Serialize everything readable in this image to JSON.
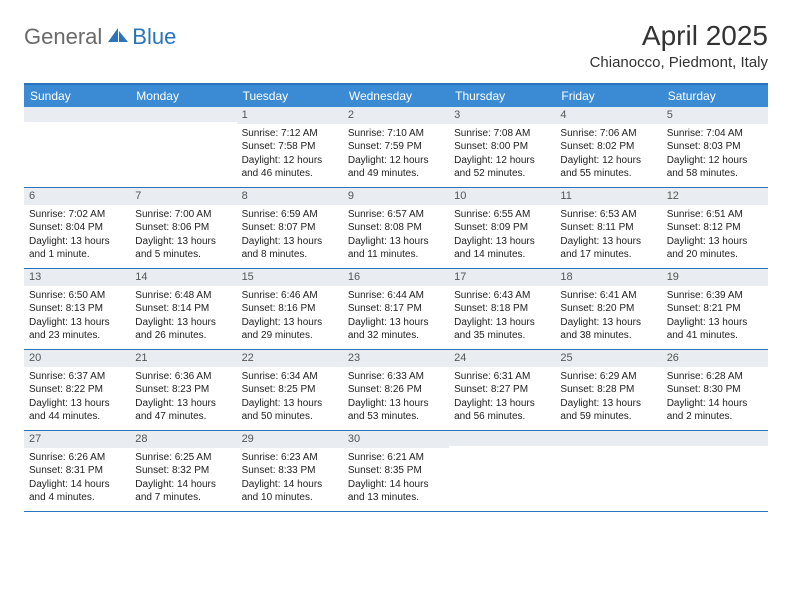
{
  "logo": {
    "part1": "General",
    "part2": "Blue"
  },
  "title": "April 2025",
  "location": "Chianocco, Piedmont, Italy",
  "colors": {
    "header_bg": "#3b8bd4",
    "border": "#2a74bd",
    "daynum_bg": "#e9edf1",
    "logo_gray": "#6a6a6a",
    "logo_blue": "#2a74bd"
  },
  "day_headers": [
    "Sunday",
    "Monday",
    "Tuesday",
    "Wednesday",
    "Thursday",
    "Friday",
    "Saturday"
  ],
  "weeks": [
    [
      {
        "num": "",
        "lines": []
      },
      {
        "num": "",
        "lines": []
      },
      {
        "num": "1",
        "lines": [
          "Sunrise: 7:12 AM",
          "Sunset: 7:58 PM",
          "Daylight: 12 hours",
          "and 46 minutes."
        ]
      },
      {
        "num": "2",
        "lines": [
          "Sunrise: 7:10 AM",
          "Sunset: 7:59 PM",
          "Daylight: 12 hours",
          "and 49 minutes."
        ]
      },
      {
        "num": "3",
        "lines": [
          "Sunrise: 7:08 AM",
          "Sunset: 8:00 PM",
          "Daylight: 12 hours",
          "and 52 minutes."
        ]
      },
      {
        "num": "4",
        "lines": [
          "Sunrise: 7:06 AM",
          "Sunset: 8:02 PM",
          "Daylight: 12 hours",
          "and 55 minutes."
        ]
      },
      {
        "num": "5",
        "lines": [
          "Sunrise: 7:04 AM",
          "Sunset: 8:03 PM",
          "Daylight: 12 hours",
          "and 58 minutes."
        ]
      }
    ],
    [
      {
        "num": "6",
        "lines": [
          "Sunrise: 7:02 AM",
          "Sunset: 8:04 PM",
          "Daylight: 13 hours",
          "and 1 minute."
        ]
      },
      {
        "num": "7",
        "lines": [
          "Sunrise: 7:00 AM",
          "Sunset: 8:06 PM",
          "Daylight: 13 hours",
          "and 5 minutes."
        ]
      },
      {
        "num": "8",
        "lines": [
          "Sunrise: 6:59 AM",
          "Sunset: 8:07 PM",
          "Daylight: 13 hours",
          "and 8 minutes."
        ]
      },
      {
        "num": "9",
        "lines": [
          "Sunrise: 6:57 AM",
          "Sunset: 8:08 PM",
          "Daylight: 13 hours",
          "and 11 minutes."
        ]
      },
      {
        "num": "10",
        "lines": [
          "Sunrise: 6:55 AM",
          "Sunset: 8:09 PM",
          "Daylight: 13 hours",
          "and 14 minutes."
        ]
      },
      {
        "num": "11",
        "lines": [
          "Sunrise: 6:53 AM",
          "Sunset: 8:11 PM",
          "Daylight: 13 hours",
          "and 17 minutes."
        ]
      },
      {
        "num": "12",
        "lines": [
          "Sunrise: 6:51 AM",
          "Sunset: 8:12 PM",
          "Daylight: 13 hours",
          "and 20 minutes."
        ]
      }
    ],
    [
      {
        "num": "13",
        "lines": [
          "Sunrise: 6:50 AM",
          "Sunset: 8:13 PM",
          "Daylight: 13 hours",
          "and 23 minutes."
        ]
      },
      {
        "num": "14",
        "lines": [
          "Sunrise: 6:48 AM",
          "Sunset: 8:14 PM",
          "Daylight: 13 hours",
          "and 26 minutes."
        ]
      },
      {
        "num": "15",
        "lines": [
          "Sunrise: 6:46 AM",
          "Sunset: 8:16 PM",
          "Daylight: 13 hours",
          "and 29 minutes."
        ]
      },
      {
        "num": "16",
        "lines": [
          "Sunrise: 6:44 AM",
          "Sunset: 8:17 PM",
          "Daylight: 13 hours",
          "and 32 minutes."
        ]
      },
      {
        "num": "17",
        "lines": [
          "Sunrise: 6:43 AM",
          "Sunset: 8:18 PM",
          "Daylight: 13 hours",
          "and 35 minutes."
        ]
      },
      {
        "num": "18",
        "lines": [
          "Sunrise: 6:41 AM",
          "Sunset: 8:20 PM",
          "Daylight: 13 hours",
          "and 38 minutes."
        ]
      },
      {
        "num": "19",
        "lines": [
          "Sunrise: 6:39 AM",
          "Sunset: 8:21 PM",
          "Daylight: 13 hours",
          "and 41 minutes."
        ]
      }
    ],
    [
      {
        "num": "20",
        "lines": [
          "Sunrise: 6:37 AM",
          "Sunset: 8:22 PM",
          "Daylight: 13 hours",
          "and 44 minutes."
        ]
      },
      {
        "num": "21",
        "lines": [
          "Sunrise: 6:36 AM",
          "Sunset: 8:23 PM",
          "Daylight: 13 hours",
          "and 47 minutes."
        ]
      },
      {
        "num": "22",
        "lines": [
          "Sunrise: 6:34 AM",
          "Sunset: 8:25 PM",
          "Daylight: 13 hours",
          "and 50 minutes."
        ]
      },
      {
        "num": "23",
        "lines": [
          "Sunrise: 6:33 AM",
          "Sunset: 8:26 PM",
          "Daylight: 13 hours",
          "and 53 minutes."
        ]
      },
      {
        "num": "24",
        "lines": [
          "Sunrise: 6:31 AM",
          "Sunset: 8:27 PM",
          "Daylight: 13 hours",
          "and 56 minutes."
        ]
      },
      {
        "num": "25",
        "lines": [
          "Sunrise: 6:29 AM",
          "Sunset: 8:28 PM",
          "Daylight: 13 hours",
          "and 59 minutes."
        ]
      },
      {
        "num": "26",
        "lines": [
          "Sunrise: 6:28 AM",
          "Sunset: 8:30 PM",
          "Daylight: 14 hours",
          "and 2 minutes."
        ]
      }
    ],
    [
      {
        "num": "27",
        "lines": [
          "Sunrise: 6:26 AM",
          "Sunset: 8:31 PM",
          "Daylight: 14 hours",
          "and 4 minutes."
        ]
      },
      {
        "num": "28",
        "lines": [
          "Sunrise: 6:25 AM",
          "Sunset: 8:32 PM",
          "Daylight: 14 hours",
          "and 7 minutes."
        ]
      },
      {
        "num": "29",
        "lines": [
          "Sunrise: 6:23 AM",
          "Sunset: 8:33 PM",
          "Daylight: 14 hours",
          "and 10 minutes."
        ]
      },
      {
        "num": "30",
        "lines": [
          "Sunrise: 6:21 AM",
          "Sunset: 8:35 PM",
          "Daylight: 14 hours",
          "and 13 minutes."
        ]
      },
      {
        "num": "",
        "lines": []
      },
      {
        "num": "",
        "lines": []
      },
      {
        "num": "",
        "lines": []
      }
    ]
  ]
}
